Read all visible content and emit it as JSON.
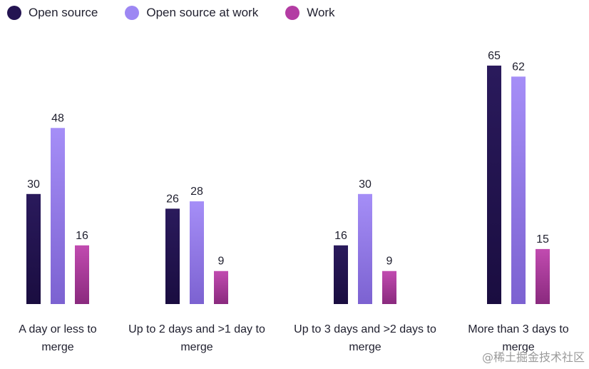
{
  "legend": {
    "items": [
      {
        "label": "Open source",
        "color": "#241452"
      },
      {
        "label": "Open source at work",
        "color": "#9d87f3"
      },
      {
        "label": "Work",
        "color": "#b33ca3"
      }
    ]
  },
  "watermark": "@稀土掘金技术社区",
  "chart_data": {
    "type": "bar",
    "title": "",
    "xlabel": "",
    "ylabel": "",
    "ylim": [
      0,
      70
    ],
    "grid": false,
    "legend_position": "top-left",
    "categories": [
      [
        "A day or less to",
        "merge"
      ],
      [
        "Up to 2 days and >1 day to",
        "merge"
      ],
      [
        "Up to 3 days and >2 days to",
        "merge"
      ],
      [
        "More than 3 days to",
        "merge"
      ]
    ],
    "series": [
      {
        "name": "Open source",
        "values": [
          30,
          26,
          16,
          65
        ],
        "color_top": "#2a1a5c",
        "color_bottom": "#1a0d40"
      },
      {
        "name": "Open source at work",
        "values": [
          48,
          28,
          30,
          62
        ],
        "color_top": "#a58ef7",
        "color_bottom": "#7c62d1"
      },
      {
        "name": "Work",
        "values": [
          16,
          9,
          9,
          15
        ],
        "color_top": "#c14bb0",
        "color_bottom": "#8a2a7e"
      }
    ]
  }
}
